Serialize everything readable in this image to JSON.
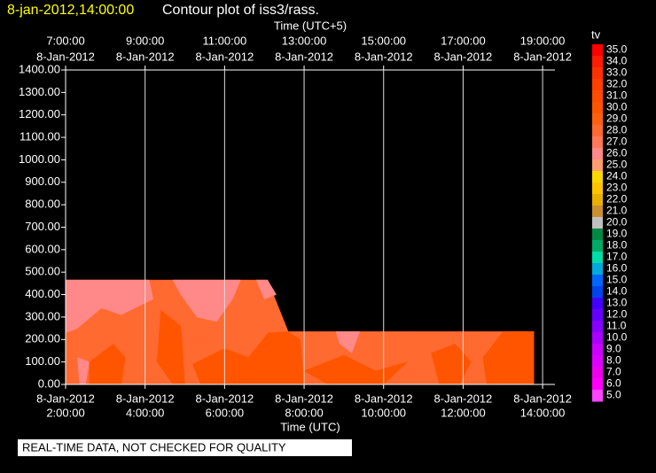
{
  "chart_data": {
    "type": "contour",
    "title_time": "8-jan-2012,14:00:00",
    "title": "Contour plot of iss3/rass.",
    "xlabel": "Time (UTC)",
    "x2label": "Time (UTC+5)",
    "xlim": [
      2,
      14.31
    ],
    "ylim": [
      0,
      1400
    ],
    "xticks": [
      {
        "value": 2,
        "label": "2:00:00"
      },
      {
        "value": 4,
        "label": "4:00:00"
      },
      {
        "value": 6,
        "label": "6:00:00"
      },
      {
        "value": 8,
        "label": "8:00:00"
      },
      {
        "value": 10,
        "label": "10:00:00"
      },
      {
        "value": 12,
        "label": "12:00:00"
      },
      {
        "value": 14,
        "label": "14:00:00"
      }
    ],
    "xtick_dates": [
      "8-Jan-2012",
      "8-Jan-2012",
      "8-Jan-2012",
      "8-Jan-2012",
      "8-Jan-2012",
      "8-Jan-2012",
      "8-Jan-2012"
    ],
    "x2ticks": [
      {
        "value": 2,
        "label": "7:00:00"
      },
      {
        "value": 4,
        "label": "9:00:00"
      },
      {
        "value": 6,
        "label": "11:00:00"
      },
      {
        "value": 8,
        "label": "13:00:00"
      },
      {
        "value": 10,
        "label": "15:00:00"
      },
      {
        "value": 12,
        "label": "17:00:00"
      },
      {
        "value": 14,
        "label": "19:00:00"
      }
    ],
    "x2tick_dates": [
      "8-Jan-2012",
      "8-Jan-2012",
      "8-Jan-2012",
      "8-Jan-2012",
      "8-Jan-2012",
      "8-Jan-2012",
      "8-Jan-2012"
    ],
    "yticks": [
      {
        "value": 0,
        "label": "0.00"
      },
      {
        "value": 100,
        "label": "100.00"
      },
      {
        "value": 200,
        "label": "200.00"
      },
      {
        "value": 300,
        "label": "300.00"
      },
      {
        "value": 400,
        "label": "400.00"
      },
      {
        "value": 500,
        "label": "500.00"
      },
      {
        "value": 600,
        "label": "600.00"
      },
      {
        "value": 700,
        "label": "700.00"
      },
      {
        "value": 800,
        "label": "800.00"
      },
      {
        "value": 900,
        "label": "900.00"
      },
      {
        "value": 1000,
        "label": "1000.00"
      },
      {
        "value": 1100,
        "label": "1100.00"
      },
      {
        "value": 1200,
        "label": "1200.00"
      },
      {
        "value": 1300,
        "label": "1300.00"
      },
      {
        "value": 1400,
        "label": "1400.00"
      }
    ],
    "grid": true,
    "colorbar_label": "tv",
    "colorbar": [
      {
        "value": 35,
        "label": "35.0",
        "color": "#ff0000"
      },
      {
        "value": 34,
        "label": "34.0",
        "color": "#ff1c00"
      },
      {
        "value": 33,
        "label": "33.0",
        "color": "#ff3000"
      },
      {
        "value": 32,
        "label": "32.0",
        "color": "#ff4000"
      },
      {
        "value": 31,
        "label": "31.0",
        "color": "#ff4c00"
      },
      {
        "value": 30,
        "label": "30.0",
        "color": "#ff5500"
      },
      {
        "value": 29,
        "label": "29.0",
        "color": "#ff6010"
      },
      {
        "value": 28,
        "label": "28.0",
        "color": "#ff6a30"
      },
      {
        "value": 27,
        "label": "27.0",
        "color": "#ff7858"
      },
      {
        "value": 26,
        "label": "26.0",
        "color": "#ff8888"
      },
      {
        "value": 25,
        "label": "25.0",
        "color": "#ff9c70"
      },
      {
        "value": 24,
        "label": "24.0",
        "color": "#ffd700"
      },
      {
        "value": 23,
        "label": "23.0",
        "color": "#ffc400"
      },
      {
        "value": 22,
        "label": "22.0",
        "color": "#e8b000"
      },
      {
        "value": 21,
        "label": "21.0",
        "color": "#c89030"
      },
      {
        "value": 20,
        "label": "20.0",
        "color": "#c0c0c0"
      },
      {
        "value": 19,
        "label": "19.0",
        "color": "#008844"
      },
      {
        "value": 18,
        "label": "18.0",
        "color": "#00aa66"
      },
      {
        "value": 17,
        "label": "17.0",
        "color": "#00ddaa"
      },
      {
        "value": 16,
        "label": "16.0",
        "color": "#00aadd"
      },
      {
        "value": 15,
        "label": "15.0",
        "color": "#0066ff"
      },
      {
        "value": 14,
        "label": "14.0",
        "color": "#0044ee"
      },
      {
        "value": 13,
        "label": "13.0",
        "color": "#4400ff"
      },
      {
        "value": 12,
        "label": "12.0",
        "color": "#6600ff"
      },
      {
        "value": 11,
        "label": "11.0",
        "color": "#8800ff"
      },
      {
        "value": 10,
        "label": "10.0",
        "color": "#aa00ff"
      },
      {
        "value": 9,
        "label": "9.0",
        "color": "#cc00ff"
      },
      {
        "value": 8,
        "label": "8.0",
        "color": "#dd00ff"
      },
      {
        "value": 7,
        "label": "7.0",
        "color": "#ee00ee"
      },
      {
        "value": 6,
        "label": "6.0",
        "color": "#ff00ff"
      },
      {
        "value": 5,
        "label": "5.0",
        "color": "#ff44ff"
      }
    ],
    "contours": [
      {
        "level": 28,
        "color": "#ff6a30",
        "x": [
          2,
          7.08,
          7.6,
          13.78,
          13.78,
          2
        ],
        "y": [
          465,
          465,
          235,
          235,
          0,
          0
        ]
      },
      {
        "level": 26,
        "color": "#ff8888",
        "x": [
          2,
          4.1,
          4.2,
          3.4,
          2.9,
          2.3,
          2
        ],
        "y": [
          465,
          465,
          380,
          310,
          340,
          250,
          230
        ]
      },
      {
        "level": 26,
        "color": "#ff8888",
        "x": [
          4.7,
          6.4,
          6.2,
          5.8,
          5.3,
          4.9
        ],
        "y": [
          465,
          465,
          380,
          280,
          300,
          400
        ]
      },
      {
        "level": 26,
        "color": "#ff8888",
        "x": [
          6.8,
          7.08,
          7.3,
          7.0
        ],
        "y": [
          465,
          465,
          400,
          380
        ]
      },
      {
        "level": 26,
        "color": "#ff8888",
        "x": [
          8.8,
          9.4,
          9.2,
          8.9
        ],
        "y": [
          235,
          235,
          140,
          180
        ]
      },
      {
        "level": 26,
        "color": "#ff8888",
        "x": [
          2.3,
          2.6,
          2.5,
          2.35
        ],
        "y": [
          120,
          100,
          0,
          0
        ]
      },
      {
        "level": 30,
        "color": "#ff5500",
        "x": [
          2.6,
          3.2,
          3.5,
          3.4,
          2.6
        ],
        "y": [
          100,
          180,
          120,
          0,
          0
        ]
      },
      {
        "level": 30,
        "color": "#ff5500",
        "x": [
          4.4,
          4.9,
          5.0,
          4.7,
          4.3
        ],
        "y": [
          330,
          260,
          0,
          0,
          100
        ]
      },
      {
        "level": 30,
        "color": "#ff5500",
        "x": [
          5.2,
          6.0,
          6.6,
          7.1,
          7.6,
          7.9,
          8.0,
          6.5,
          5.4
        ],
        "y": [
          90,
          160,
          120,
          230,
          235,
          200,
          0,
          0,
          0
        ]
      },
      {
        "level": 30,
        "color": "#ff5500",
        "x": [
          8.0,
          9.0,
          9.8,
          10.6,
          10.0,
          8.6
        ],
        "y": [
          60,
          130,
          60,
          100,
          0,
          0
        ]
      },
      {
        "level": 30,
        "color": "#ff5500",
        "x": [
          11.2,
          11.8,
          12.2,
          11.9,
          11.4
        ],
        "y": [
          140,
          180,
          100,
          0,
          0
        ]
      },
      {
        "level": 30,
        "color": "#ff5500",
        "x": [
          12.5,
          13.0,
          13.78,
          13.78,
          12.6
        ],
        "y": [
          120,
          235,
          235,
          0,
          0
        ]
      }
    ],
    "footer": "REAL-TIME DATA, NOT CHECKED FOR QUALITY"
  }
}
